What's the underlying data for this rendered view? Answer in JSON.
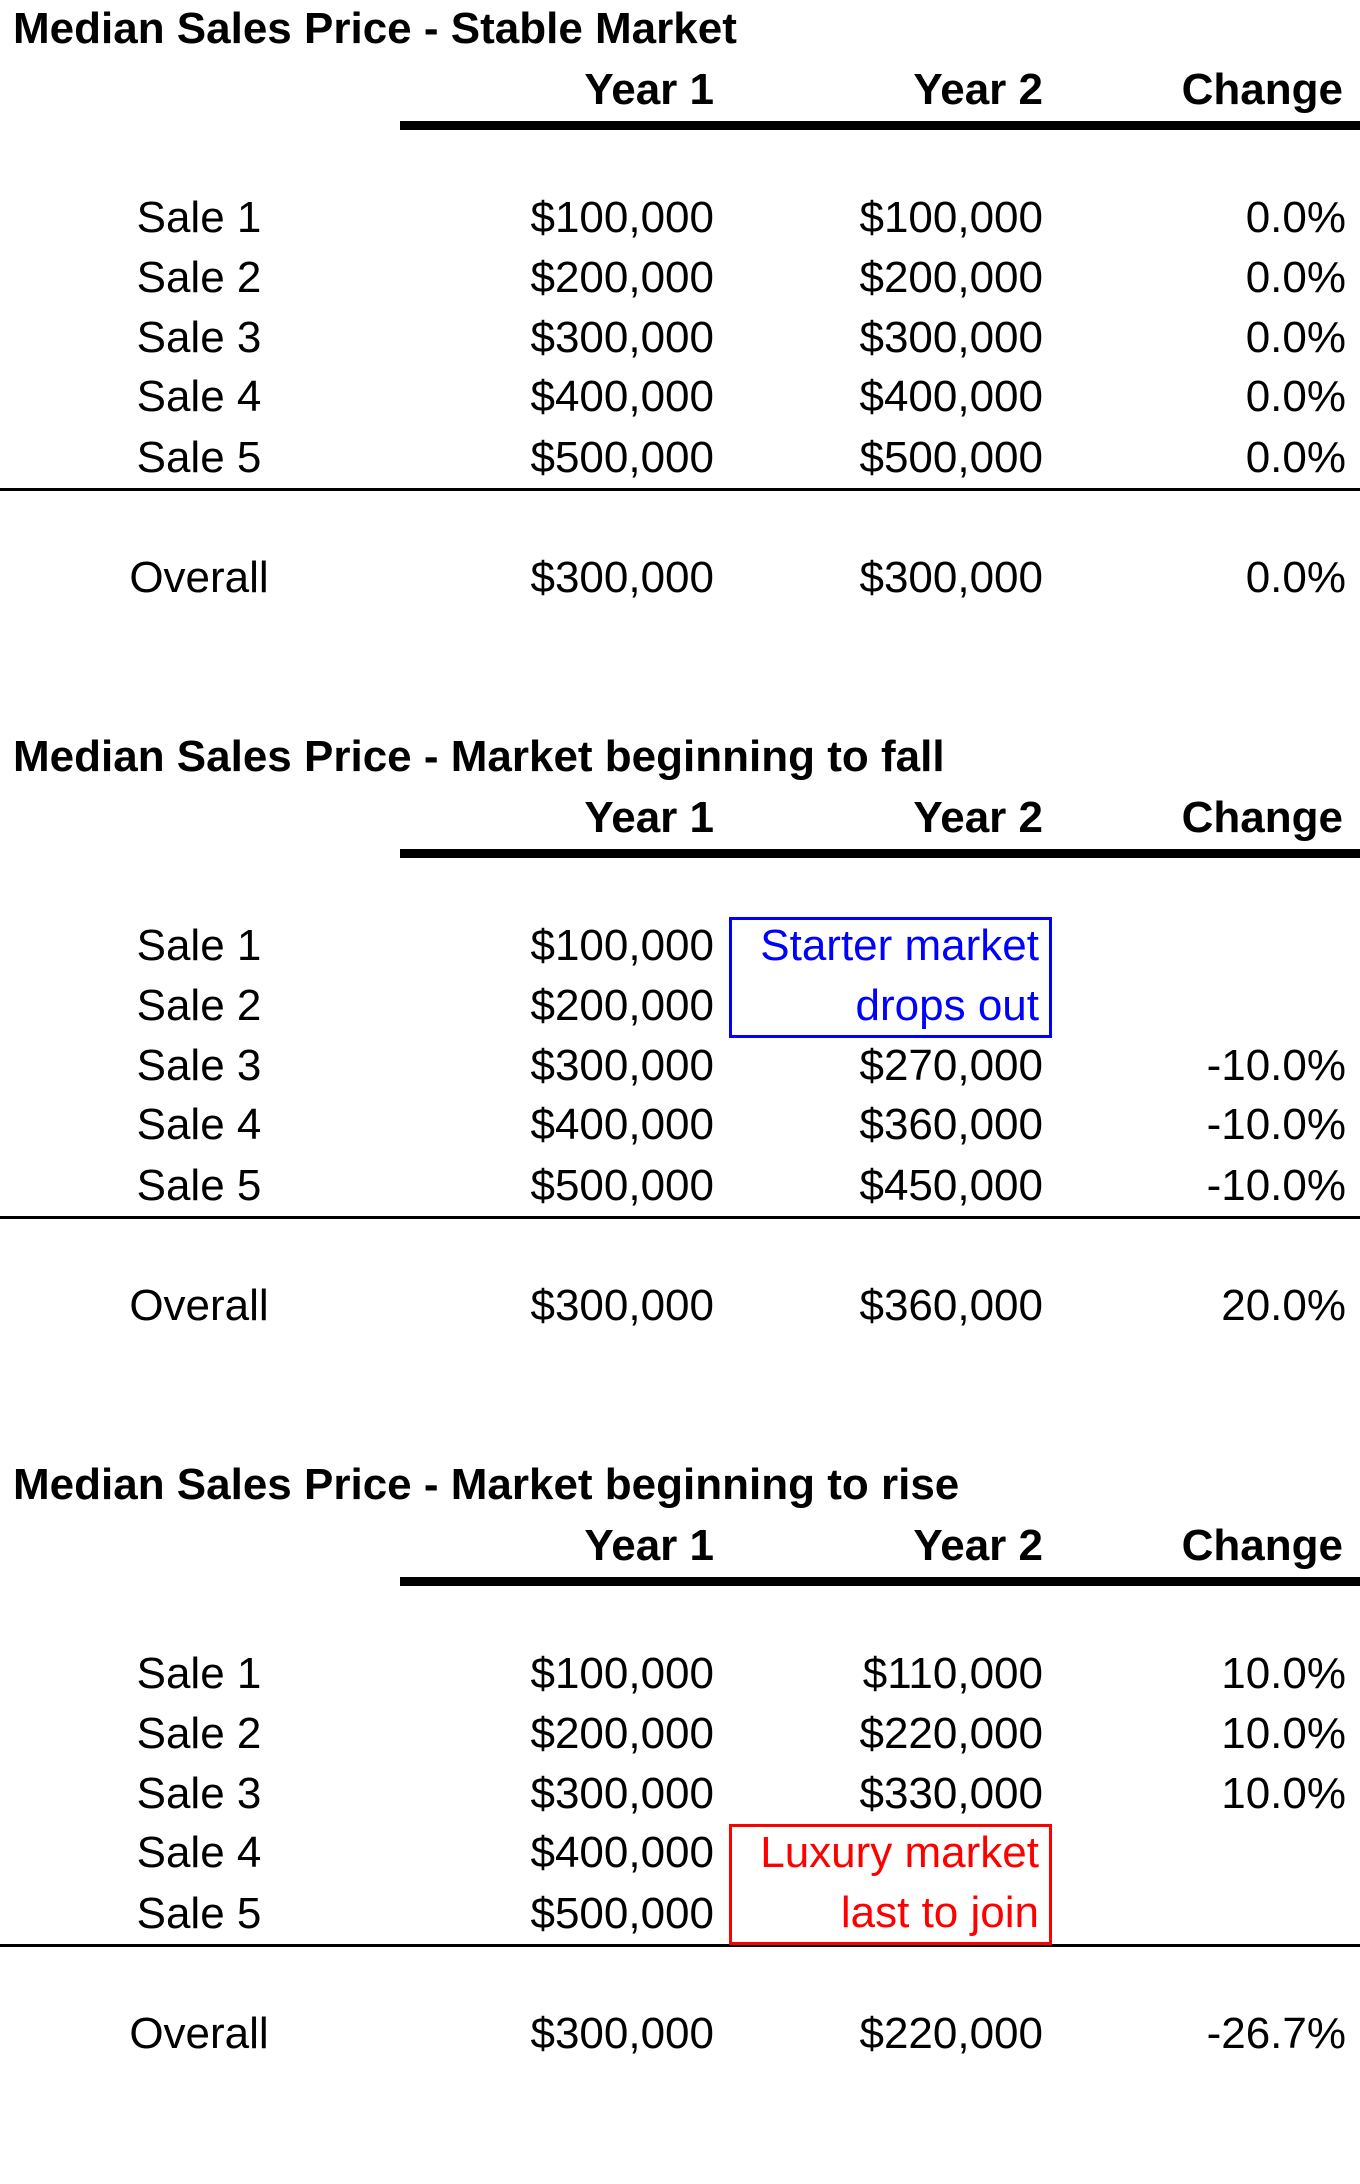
{
  "headers": {
    "year1": "Year 1",
    "year2": "Year 2",
    "change": "Change"
  },
  "sections": [
    {
      "title": "Median Sales Price - Stable Market",
      "rows": [
        {
          "label": "Sale 1",
          "year1": "$100,000",
          "year2": "$100,000",
          "change": "0.0%"
        },
        {
          "label": "Sale 2",
          "year1": "$200,000",
          "year2": "$200,000",
          "change": "0.0%"
        },
        {
          "label": "Sale 3",
          "year1": "$300,000",
          "year2": "$300,000",
          "change": "0.0%"
        },
        {
          "label": "Sale 4",
          "year1": "$400,000",
          "year2": "$400,000",
          "change": "0.0%"
        },
        {
          "label": "Sale 5",
          "year1": "$500,000",
          "year2": "$500,000",
          "change": "0.0%"
        }
      ],
      "overall": {
        "label": "Overall",
        "year1": "$300,000",
        "year2": "$300,000",
        "change": "0.0%"
      }
    },
    {
      "title": "Median Sales Price - Market beginning to fall",
      "rows": [
        {
          "label": "Sale 1",
          "year1": "$100,000",
          "year2": "",
          "change": ""
        },
        {
          "label": "Sale 2",
          "year1": "$200,000",
          "year2": "",
          "change": ""
        },
        {
          "label": "Sale 3",
          "year1": "$300,000",
          "year2": "$270,000",
          "change": "-10.0%"
        },
        {
          "label": "Sale 4",
          "year1": "$400,000",
          "year2": "$360,000",
          "change": "-10.0%"
        },
        {
          "label": "Sale 5",
          "year1": "$500,000",
          "year2": "$450,000",
          "change": "-10.0%"
        }
      ],
      "overall": {
        "label": "Overall",
        "year1": "$300,000",
        "year2": "$360,000",
        "change": "20.0%"
      },
      "note": {
        "lines": [
          "Starter market",
          "drops out"
        ],
        "color": "#0000ff",
        "first_row": 0
      }
    },
    {
      "title": "Median Sales Price - Market beginning to rise",
      "rows": [
        {
          "label": "Sale 1",
          "year1": "$100,000",
          "year2": "$110,000",
          "change": "10.0%"
        },
        {
          "label": "Sale 2",
          "year1": "$200,000",
          "year2": "$220,000",
          "change": "10.0%"
        },
        {
          "label": "Sale 3",
          "year1": "$300,000",
          "year2": "$330,000",
          "change": "10.0%"
        },
        {
          "label": "Sale 4",
          "year1": "$400,000",
          "year2": "",
          "change": ""
        },
        {
          "label": "Sale 5",
          "year1": "$500,000",
          "year2": "",
          "change": ""
        }
      ],
      "overall": {
        "label": "Overall",
        "year1": "$300,000",
        "year2": "$220,000",
        "change": "-26.7%"
      },
      "note": {
        "lines": [
          "Luxury market",
          "last to join"
        ],
        "color": "#ff0000",
        "first_row": 3
      }
    }
  ]
}
